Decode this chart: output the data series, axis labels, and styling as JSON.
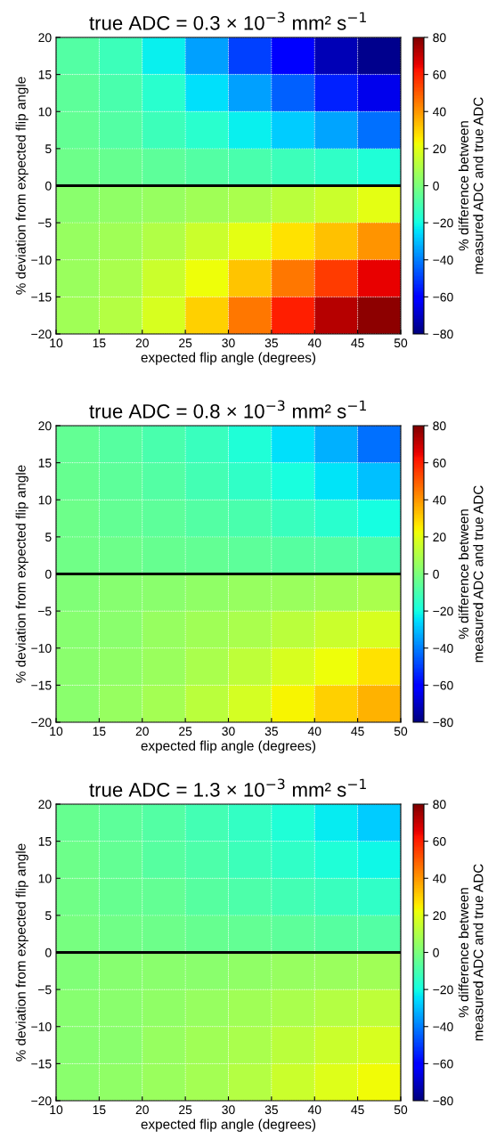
{
  "chart_data": [
    {
      "type": "heatmap",
      "title": "true ADC = 0.3 × 10$^{−3}$ mm² s$^{−1}$",
      "xlabel": "expected flip angle (degrees)",
      "ylabel": "% deviation from expected flip angle",
      "clabel": "% difference between\nmeasured ADC and true ADC",
      "x": [
        12.5,
        17.5,
        22.5,
        27.5,
        32.5,
        37.5,
        42.5,
        47.5
      ],
      "y": [
        17.5,
        12.5,
        7.5,
        2.5,
        -2.5,
        -7.5,
        -12.5,
        -17.5
      ],
      "cells": [
        [
          -8,
          -12,
          -22,
          -35,
          -50,
          -62,
          -72,
          -78
        ],
        [
          -6,
          -10,
          -16,
          -25,
          -35,
          -45,
          -55,
          -65
        ],
        [
          -5,
          -8,
          -12,
          -16,
          -22,
          -28,
          -34,
          -42
        ],
        [
          -3,
          -4,
          -6,
          -8,
          -10,
          -12,
          -15,
          -18
        ],
        [
          3,
          4,
          5,
          7,
          9,
          12,
          15,
          20
        ],
        [
          5,
          7,
          10,
          15,
          20,
          27,
          33,
          40
        ],
        [
          6,
          9,
          15,
          22,
          32,
          45,
          55,
          65
        ],
        [
          7,
          11,
          18,
          30,
          45,
          60,
          72,
          78
        ]
      ],
      "xlim": [
        10,
        50
      ],
      "xticks": [
        10,
        15,
        20,
        25,
        30,
        35,
        40,
        45,
        50
      ],
      "ylim": [
        -20,
        20
      ],
      "yticks": [
        -20,
        -15,
        -10,
        -5,
        0,
        5,
        10,
        15,
        20
      ],
      "clim": [
        -80,
        80
      ],
      "cticks": [
        -80,
        -60,
        -40,
        -20,
        0,
        20,
        40,
        60,
        80
      ],
      "grid": true,
      "ref_lines": [
        {
          "axis": "y",
          "value": 0,
          "color": "#000000"
        }
      ]
    },
    {
      "type": "heatmap",
      "title": "true ADC = 0.8 × 10$^{−3}$ mm² s$^{−1}$",
      "xlabel": "expected flip angle (degrees)",
      "ylabel": "% deviation from expected flip angle",
      "clabel": "% difference between\nmeasured ADC and true ADC",
      "x": [
        12.5,
        17.5,
        22.5,
        27.5,
        32.5,
        37.5,
        42.5,
        47.5
      ],
      "y": [
        17.5,
        12.5,
        7.5,
        2.5,
        -2.5,
        -7.5,
        -12.5,
        -17.5
      ],
      "cells": [
        [
          -5,
          -7,
          -10,
          -13,
          -18,
          -25,
          -32,
          -42
        ],
        [
          -4,
          -6,
          -8,
          -11,
          -15,
          -19,
          -24,
          -30
        ],
        [
          -3,
          -5,
          -6,
          -8,
          -10,
          -13,
          -16,
          -20
        ],
        [
          -2,
          -3,
          -4,
          -5,
          -6,
          -7,
          -8,
          -10
        ],
        [
          1,
          2,
          3,
          4,
          5,
          6,
          7,
          9
        ],
        [
          2,
          3,
          5,
          7,
          9,
          12,
          15,
          18
        ],
        [
          3,
          4,
          6,
          9,
          13,
          18,
          22,
          27
        ],
        [
          3,
          5,
          8,
          12,
          17,
          24,
          30,
          35
        ]
      ],
      "xlim": [
        10,
        50
      ],
      "xticks": [
        10,
        15,
        20,
        25,
        30,
        35,
        40,
        45,
        50
      ],
      "ylim": [
        -20,
        20
      ],
      "yticks": [
        -20,
        -15,
        -10,
        -5,
        0,
        5,
        10,
        15,
        20
      ],
      "clim": [
        -80,
        80
      ],
      "cticks": [
        -80,
        -60,
        -40,
        -20,
        0,
        20,
        40,
        60,
        80
      ],
      "grid": true,
      "ref_lines": [
        {
          "axis": "y",
          "value": 0,
          "color": "#000000"
        }
      ]
    },
    {
      "type": "heatmap",
      "title": "true ADC = 1.3 × 10$^{−3}$ mm² s$^{−1}$",
      "xlabel": "expected flip angle (degrees)",
      "ylabel": "% deviation from expected flip angle",
      "clabel": "% difference between\nmeasured ADC and true ADC",
      "x": [
        12.5,
        17.5,
        22.5,
        27.5,
        32.5,
        37.5,
        42.5,
        47.5
      ],
      "y": [
        17.5,
        12.5,
        7.5,
        2.5,
        -2.5,
        -7.5,
        -12.5,
        -17.5
      ],
      "cells": [
        [
          -4,
          -6,
          -8,
          -11,
          -14,
          -18,
          -23,
          -28
        ],
        [
          -3,
          -5,
          -7,
          -9,
          -12,
          -15,
          -18,
          -21
        ],
        [
          -2,
          -4,
          -5,
          -7,
          -9,
          -11,
          -13,
          -15
        ],
        [
          -1,
          -2,
          -3,
          -4,
          -5,
          -6,
          -7,
          -8
        ],
        [
          1,
          2,
          3,
          3,
          4,
          5,
          6,
          7
        ],
        [
          2,
          3,
          4,
          5,
          7,
          9,
          11,
          13
        ],
        [
          2,
          3,
          5,
          7,
          9,
          12,
          15,
          18
        ],
        [
          3,
          4,
          6,
          8,
          11,
          15,
          19,
          23
        ]
      ],
      "xlim": [
        10,
        50
      ],
      "xticks": [
        10,
        15,
        20,
        25,
        30,
        35,
        40,
        45,
        50
      ],
      "ylim": [
        -20,
        20
      ],
      "yticks": [
        -20,
        -15,
        -10,
        -5,
        0,
        5,
        10,
        15,
        20
      ],
      "clim": [
        -80,
        80
      ],
      "cticks": [
        -80,
        -60,
        -40,
        -20,
        0,
        20,
        40,
        60,
        80
      ],
      "grid": true,
      "ref_lines": [
        {
          "axis": "y",
          "value": 0,
          "color": "#000000"
        }
      ]
    }
  ]
}
